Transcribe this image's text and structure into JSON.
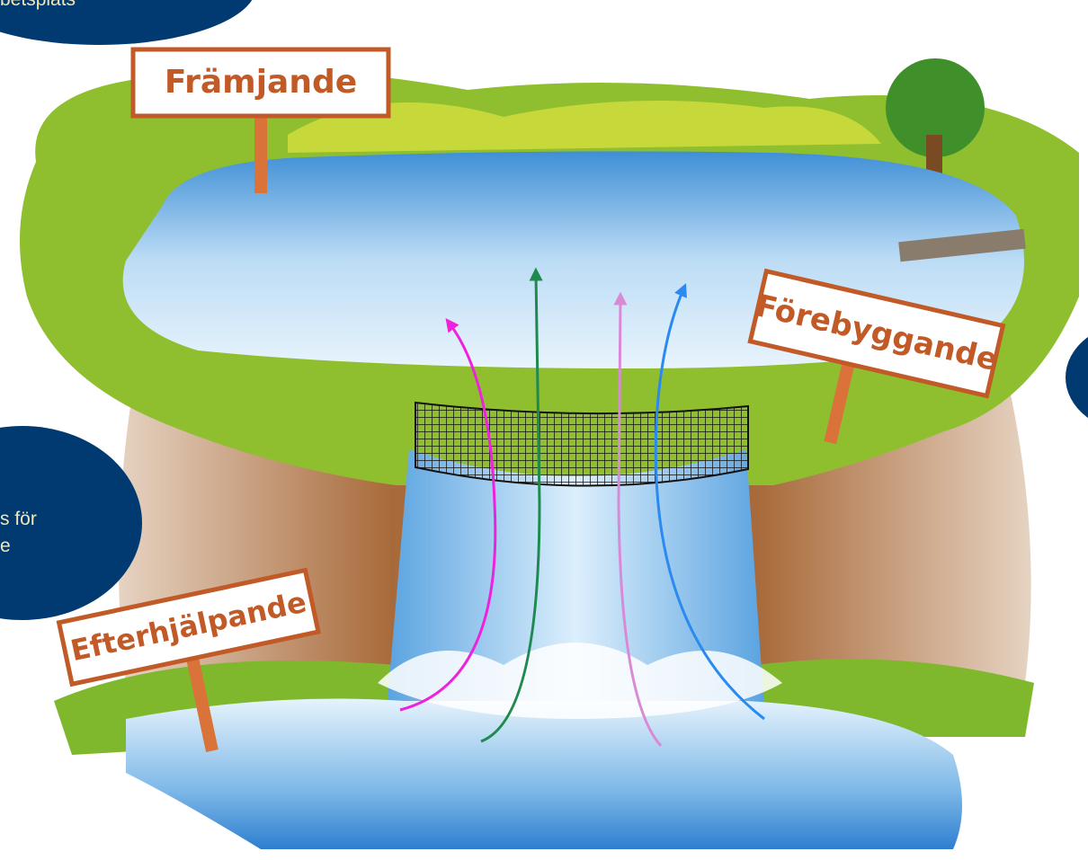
{
  "bubbles": [
    {
      "lines": [
        "betsplats"
      ]
    },
    {
      "lines": [
        "s för",
        "e"
      ]
    }
  ],
  "signs": [
    {
      "label": "Främjande"
    },
    {
      "label": "Förebyggande"
    },
    {
      "label": "Efterhjälpande"
    }
  ]
}
